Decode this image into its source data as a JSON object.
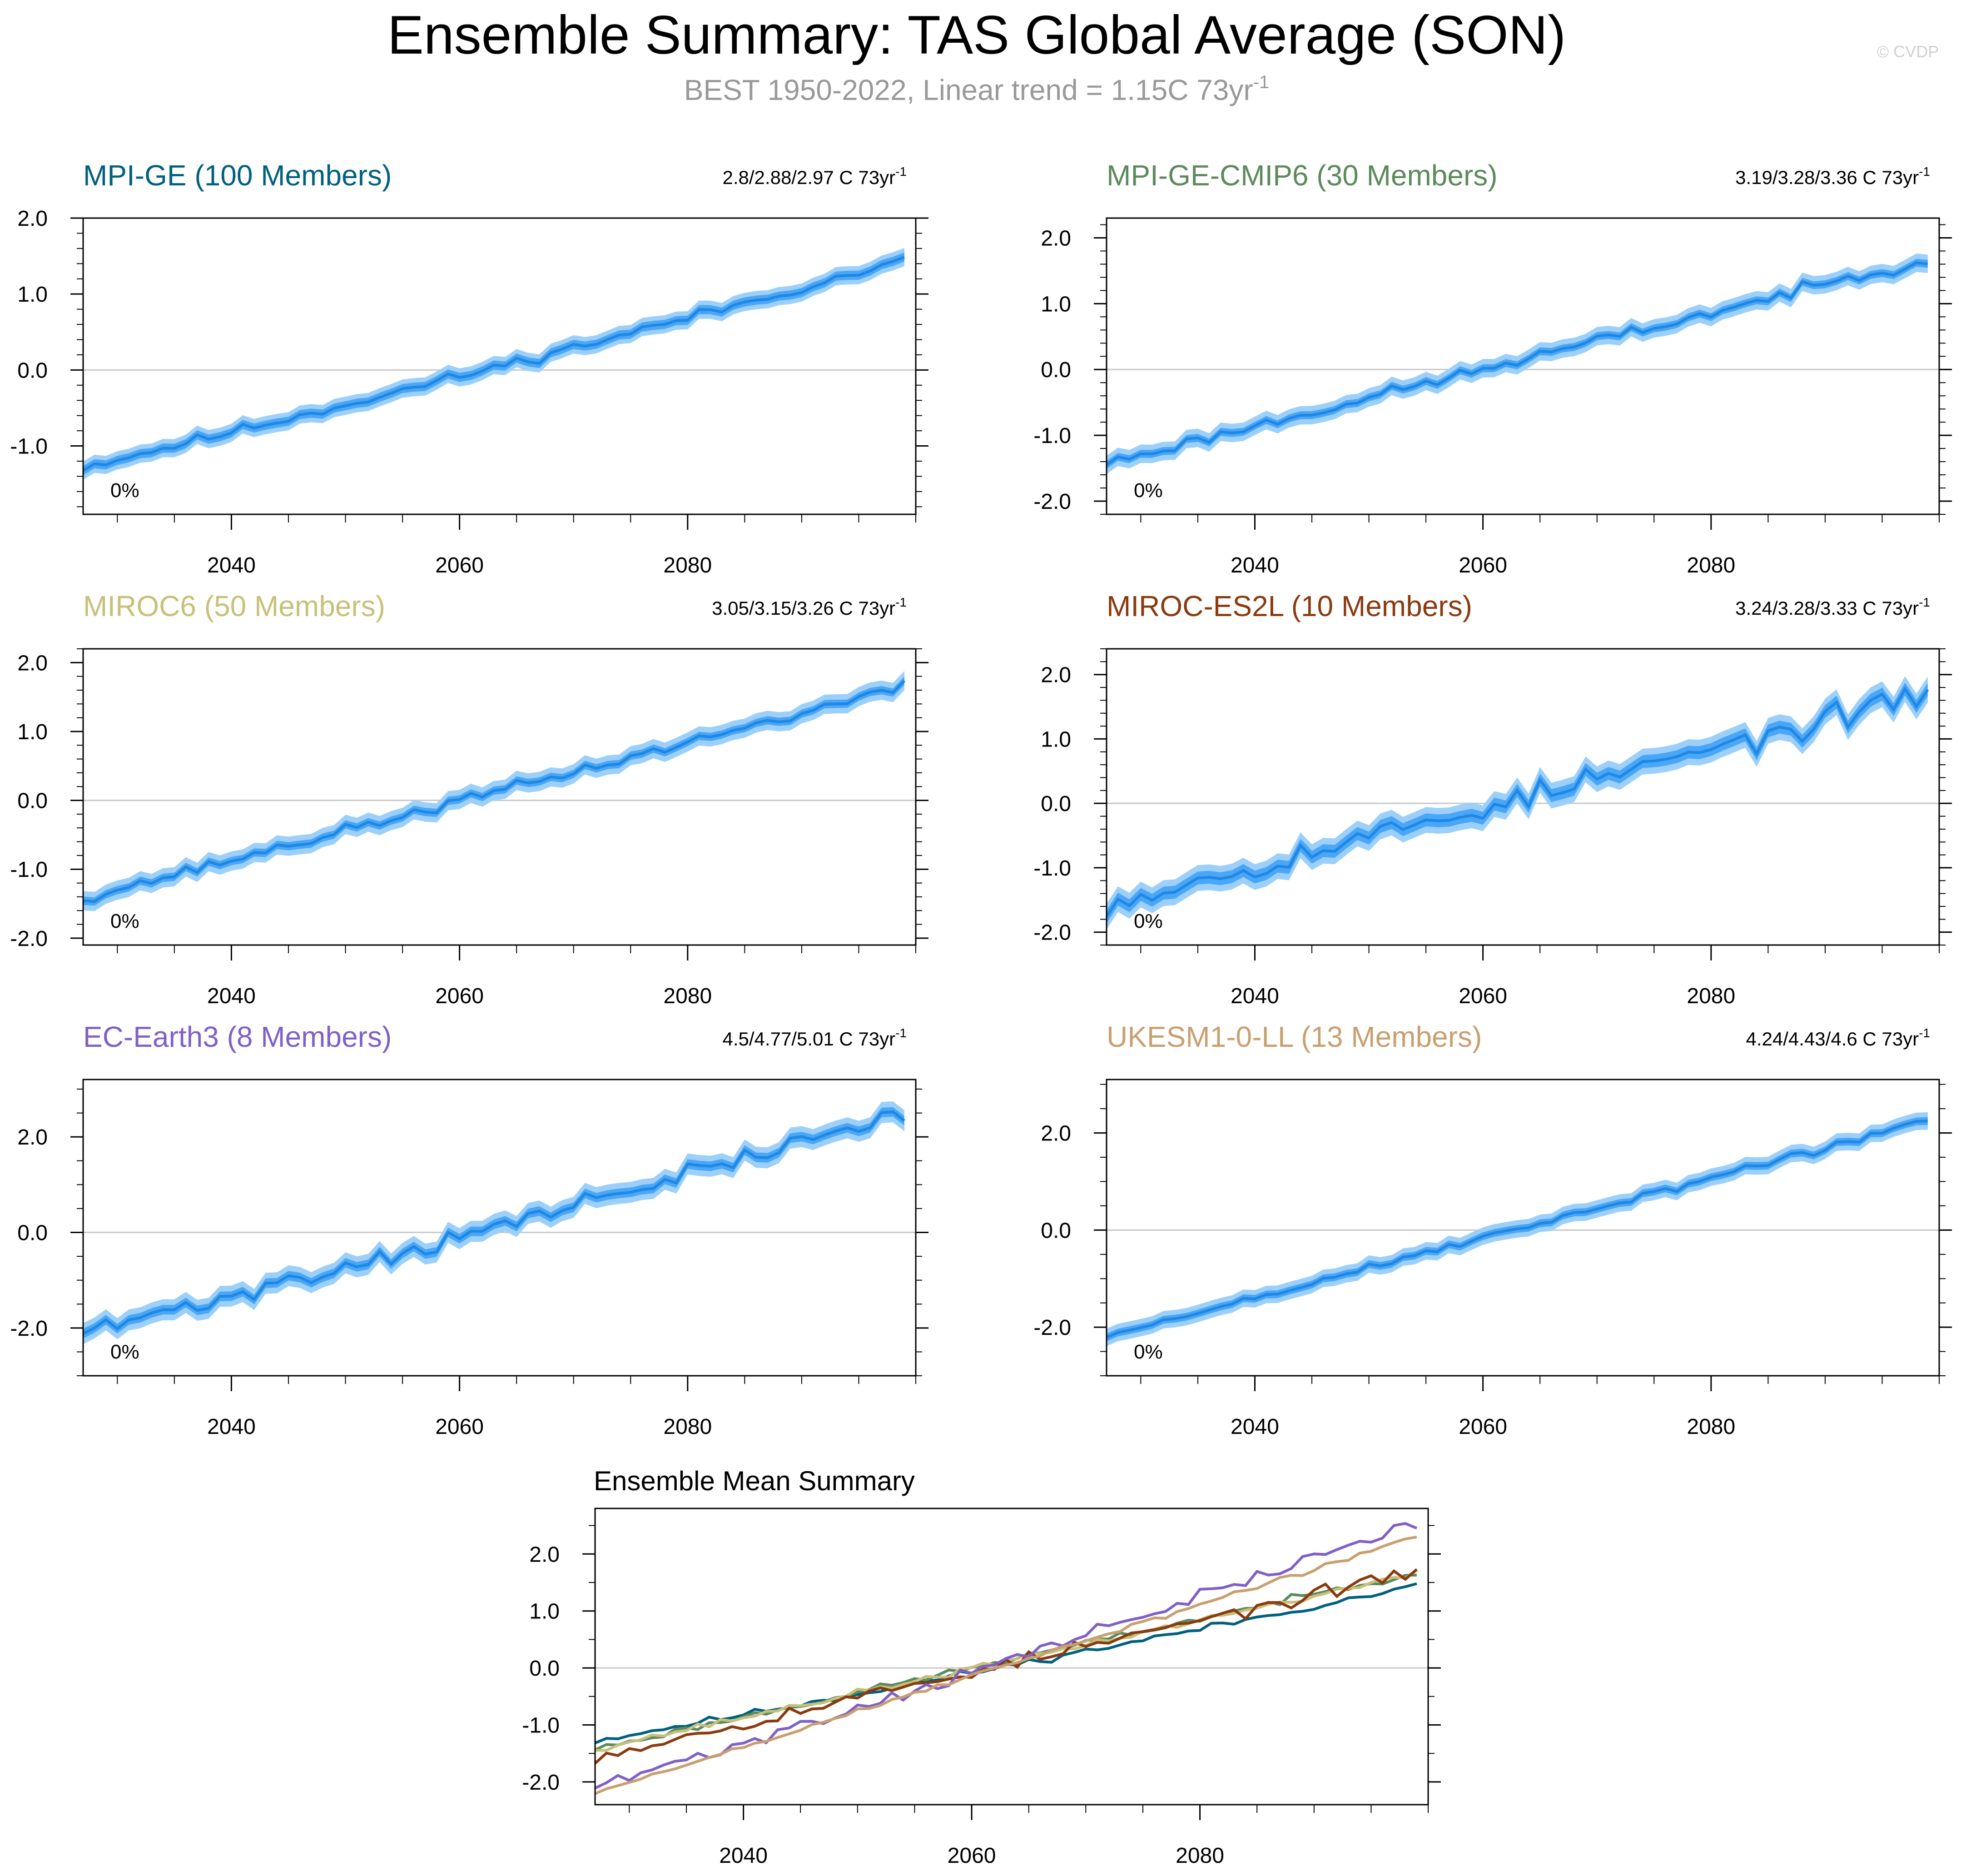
{
  "header": {
    "title": "Ensemble Summary: TAS Global Average (SON)",
    "subtitle": "BEST 1950-2022, Linear trend = 1.15C 73yr",
    "subtitle_sup": "-1",
    "credit": "© CVDP"
  },
  "colors": {
    "band_outer": "#9cd0fb",
    "band_inner": "#4aa6f6",
    "mean_line": "#1e88e5",
    "zero_line": "#c8c8c8"
  },
  "chart_data": [
    {
      "type": "area",
      "title": "MPI-GE (100 Members)",
      "title_color": "#006080",
      "trend_label": "2.8/2.88/2.97 C 73yr",
      "trend_sup": "-1",
      "pct_label": "0%",
      "xlim": [
        2027,
        2100
      ],
      "ylim": [
        -1.9,
        2.0
      ],
      "yticks": [
        -1.0,
        0.0,
        1.0,
        2.0
      ],
      "ytick_labels": [
        "-1.0",
        "0.0",
        "1.0",
        "2.0"
      ],
      "xticks": [
        2040,
        2060,
        2080
      ],
      "xtick_labels": [
        "2040",
        "2060",
        "2080"
      ],
      "x_start": 2027,
      "x_end": 2099,
      "y_start": -1.28,
      "y_end": 1.44,
      "bow": -0.05,
      "noise": 0.035,
      "spread_outer": 0.12,
      "spread_inner": 0.06,
      "seed": 11
    },
    {
      "type": "area",
      "title": "MPI-GE-CMIP6 (30 Members)",
      "title_color": "#5b8a5b",
      "trend_label": "3.19/3.28/3.36 C 73yr",
      "trend_sup": "-1",
      "pct_label": "0%",
      "xlim": [
        2027,
        2100
      ],
      "ylim": [
        -2.2,
        2.3
      ],
      "yticks": [
        -2.0,
        -1.0,
        0.0,
        1.0,
        2.0
      ],
      "ytick_labels": [
        "-2.0",
        "-1.0",
        "0.0",
        "1.0",
        "2.0"
      ],
      "xticks": [
        2040,
        2060,
        2080
      ],
      "xtick_labels": [
        "2040",
        "2060",
        "2080"
      ],
      "x_start": 2027,
      "x_end": 2099,
      "y_start": -1.42,
      "y_end": 1.68,
      "bow": 0.0,
      "noise": 0.045,
      "spread_outer": 0.14,
      "spread_inner": 0.06,
      "seed": 23
    },
    {
      "type": "area",
      "title": "MIROC6 (50 Members)",
      "title_color": "#c8c07a",
      "trend_label": "3.05/3.15/3.26 C 73yr",
      "trend_sup": "-1",
      "pct_label": "0%",
      "xlim": [
        2027,
        2100
      ],
      "ylim": [
        -2.1,
        2.2
      ],
      "yticks": [
        -2.0,
        -1.0,
        0.0,
        1.0,
        2.0
      ],
      "ytick_labels": [
        "-2.0",
        "-1.0",
        "0.0",
        "1.0",
        "2.0"
      ],
      "xticks": [
        2040,
        2060,
        2080
      ],
      "xtick_labels": [
        "2040",
        "2060",
        "2080"
      ],
      "x_start": 2027,
      "x_end": 2099,
      "y_start": -1.42,
      "y_end": 1.65,
      "bow": 0.0,
      "noise": 0.04,
      "spread_outer": 0.14,
      "spread_inner": 0.06,
      "seed": 37
    },
    {
      "type": "area",
      "title": "MIROC-ES2L (10 Members)",
      "title_color": "#8b3a0f",
      "trend_label": "3.24/3.28/3.33 C 73yr",
      "trend_sup": "-1",
      "pct_label": "0%",
      "xlim": [
        2027,
        2100
      ],
      "ylim": [
        -2.2,
        2.4
      ],
      "yticks": [
        -2.0,
        -1.0,
        0.0,
        1.0,
        2.0
      ],
      "ytick_labels": [
        "-2.0",
        "-1.0",
        "0.0",
        "1.0",
        "2.0"
      ],
      "xticks": [
        2040,
        2060,
        2080
      ],
      "xtick_labels": [
        "2040",
        "2060",
        "2080"
      ],
      "x_start": 2027,
      "x_end": 2099,
      "y_start": -1.55,
      "y_end": 1.68,
      "bow": 0.0,
      "noise": 0.1,
      "spread_outer": 0.2,
      "spread_inner": 0.1,
      "seed": 53
    },
    {
      "type": "area",
      "title": "EC-Earth3 (8 Members)",
      "title_color": "#8060c8",
      "trend_label": "4.5/4.77/5.01 C 73yr",
      "trend_sup": "-1",
      "pct_label": "0%",
      "xlim": [
        2027,
        2100
      ],
      "ylim": [
        -3.0,
        3.2
      ],
      "yticks": [
        -2.0,
        0.0,
        2.0
      ],
      "ytick_labels": [
        "-2.0",
        "0.0",
        "2.0"
      ],
      "xticks": [
        2040,
        2060,
        2080
      ],
      "xtick_labels": [
        "2040",
        "2060",
        "2080"
      ],
      "x_start": 2027,
      "x_end": 2099,
      "y_start": -2.1,
      "y_end": 2.5,
      "bow": -0.1,
      "noise": 0.1,
      "spread_outer": 0.22,
      "spread_inner": 0.1,
      "seed": 71
    },
    {
      "type": "area",
      "title": "UKESM1-0-LL (13 Members)",
      "title_color": "#c8a070",
      "trend_label": "4.24/4.43/4.6 C 73yr",
      "trend_sup": "-1",
      "pct_label": "0%",
      "xlim": [
        2027,
        2100
      ],
      "ylim": [
        -3.0,
        3.1
      ],
      "yticks": [
        -2.0,
        0.0,
        2.0
      ],
      "ytick_labels": [
        "-2.0",
        "0.0",
        "2.0"
      ],
      "xticks": [
        2040,
        2060,
        2080
      ],
      "xtick_labels": [
        "2040",
        "2060",
        "2080"
      ],
      "x_start": 2027,
      "x_end": 2099,
      "y_start": -2.2,
      "y_end": 2.25,
      "bow": 0.0,
      "noise": 0.045,
      "spread_outer": 0.18,
      "spread_inner": 0.08,
      "seed": 89
    },
    {
      "type": "line",
      "title": "Ensemble Mean Summary",
      "xlim": [
        2027,
        2100
      ],
      "ylim": [
        -2.4,
        2.8
      ],
      "yticks": [
        -2.0,
        -1.0,
        0.0,
        1.0,
        2.0
      ],
      "ytick_labels": [
        "-2.0",
        "-1.0",
        "0.0",
        "1.0",
        "2.0"
      ],
      "xticks": [
        2040,
        2060,
        2080
      ],
      "xtick_labels": [
        "2040",
        "2060",
        "2080"
      ],
      "series": [
        {
          "name": "MPI-GE",
          "color": "#006080",
          "x_start": 2027,
          "x_end": 2099,
          "y_start": -1.28,
          "y_end": 1.44,
          "bow": -0.05,
          "noise": 0.03,
          "seed": 11
        },
        {
          "name": "MPI-GE-CMIP6",
          "color": "#5b8a5b",
          "x_start": 2027,
          "x_end": 2099,
          "y_start": -1.42,
          "y_end": 1.68,
          "bow": 0.0,
          "noise": 0.03,
          "seed": 23
        },
        {
          "name": "MIROC6",
          "color": "#c8c07a",
          "x_start": 2027,
          "x_end": 2099,
          "y_start": -1.42,
          "y_end": 1.65,
          "bow": 0.0,
          "noise": 0.03,
          "seed": 37
        },
        {
          "name": "MIROC-ES2L",
          "color": "#8b3a0f",
          "x_start": 2027,
          "x_end": 2099,
          "y_start": -1.55,
          "y_end": 1.68,
          "bow": 0.0,
          "noise": 0.06,
          "seed": 53
        },
        {
          "name": "EC-Earth3",
          "color": "#8060c8",
          "x_start": 2027,
          "x_end": 2099,
          "y_start": -2.1,
          "y_end": 2.55,
          "bow": -0.1,
          "noise": 0.06,
          "seed": 71
        },
        {
          "name": "UKESM1-0-LL",
          "color": "#c8a070",
          "x_start": 2027,
          "x_end": 2099,
          "y_start": -2.2,
          "y_end": 2.3,
          "bow": 0.0,
          "noise": 0.025,
          "seed": 89
        }
      ]
    }
  ]
}
